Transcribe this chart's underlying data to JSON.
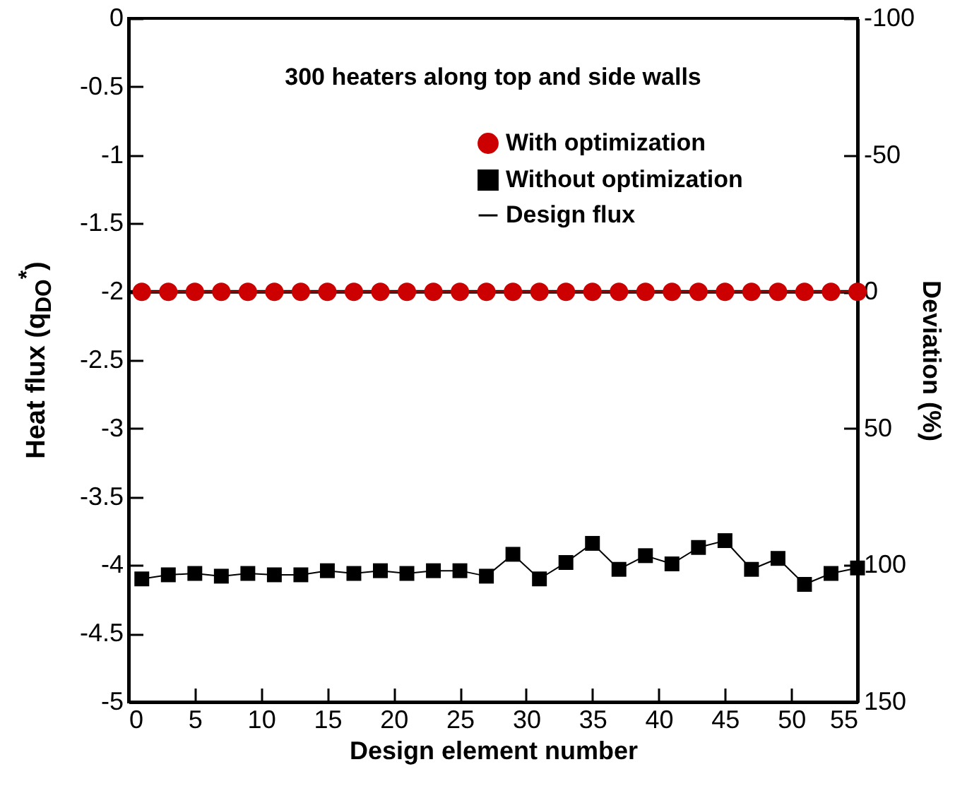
{
  "chart_data": {
    "type": "line",
    "xlabel": "Design element number",
    "ylabel": "Heat flux (q$_{DO}$$^{*}$)",
    "y2label": "Deviation (%)",
    "annotations": [
      "300 heaters along top and side walls"
    ],
    "xlim": [
      0,
      55
    ],
    "xticks": [
      0,
      5,
      10,
      15,
      20,
      25,
      30,
      35,
      40,
      45,
      50,
      55
    ],
    "ylim": [
      -5,
      0
    ],
    "yticks": [
      -5,
      -4.5,
      -4,
      -3.5,
      -3,
      -2.5,
      -2,
      -1.5,
      -1,
      -0.5,
      0
    ],
    "y2lim": [
      150,
      -100
    ],
    "y2ticks": [
      150,
      100,
      50,
      0,
      -50,
      -100
    ],
    "grid": false,
    "legend": "top right",
    "line_style": "solid",
    "series": [
      {
        "name": "With optimization",
        "color": "#cc0000",
        "marker": "circle",
        "x": [
          1,
          3,
          5,
          7,
          9,
          11,
          13,
          15,
          17,
          19,
          21,
          23,
          25,
          27,
          29,
          31,
          33,
          35,
          37,
          39,
          41,
          43,
          45,
          47,
          49,
          51,
          53,
          55
        ],
        "values": [
          -2,
          -2,
          -2,
          -2,
          -2,
          -2,
          -2,
          -2,
          -2,
          -2,
          -2,
          -2,
          -2,
          -2,
          -2,
          -2,
          -2,
          -2,
          -2,
          -2,
          -2,
          -2,
          -2,
          -2,
          -2,
          -2,
          -2,
          -2
        ]
      },
      {
        "name": "Without optimization",
        "color": "#000000",
        "marker": "square",
        "x": [
          1,
          3,
          5,
          7,
          9,
          11,
          13,
          15,
          17,
          19,
          21,
          23,
          25,
          27,
          29,
          31,
          33,
          35,
          37,
          39,
          41,
          43,
          45,
          47,
          49,
          51,
          53,
          55
        ],
        "values": [
          -4.1,
          -4.07,
          -4.06,
          -4.08,
          -4.06,
          -4.07,
          -4.07,
          -4.04,
          -4.06,
          -4.04,
          -4.06,
          -4.04,
          -4.04,
          -4.08,
          -3.92,
          -4.1,
          -3.98,
          -3.84,
          -4.03,
          -3.93,
          -3.99,
          -3.87,
          -3.82,
          -4.03,
          -3.95,
          -4.14,
          -4.06,
          -4.02
        ]
      },
      {
        "name": "Design flux",
        "color": "#000000",
        "marker": "none",
        "x": [
          0,
          55
        ],
        "values": [
          -2,
          -2
        ]
      }
    ]
  }
}
